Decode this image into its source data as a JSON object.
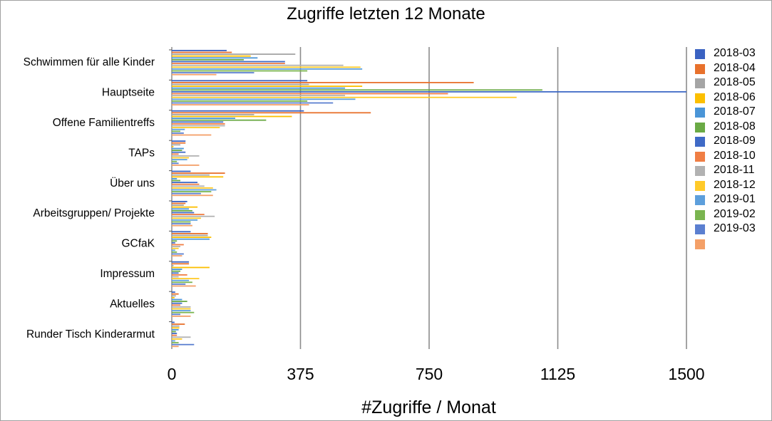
{
  "chart_data": {
    "type": "bar",
    "orientation": "horizontal",
    "title": "Zugriffe letzten 12 Monate",
    "xlabel": "#Zugriffe / Monat",
    "ylabel": "",
    "xlim": [
      0,
      1500
    ],
    "xticks": [
      "0",
      "375",
      "750",
      "1125",
      "1500"
    ],
    "grid": true,
    "legend_position": "right",
    "categories": [
      "Schwimmen für alle Kinder",
      "Hauptseite",
      "Offene Familientreffs",
      "TAPs",
      "Über uns",
      "Arbeitsgruppen/ Projekte",
      "GCfaK",
      "Impressum",
      "Aktuelles",
      "Runder Tisch Kinderarmut"
    ],
    "series": [
      {
        "name": "2018-03",
        "color": "#3a62c2",
        "values": [
          160,
          395,
          385,
          40,
          55,
          45,
          55,
          50,
          10,
          8
        ]
      },
      {
        "name": "2018-04",
        "color": "#e8712c",
        "values": [
          175,
          880,
          580,
          40,
          155,
          40,
          105,
          50,
          20,
          38
        ]
      },
      {
        "name": "2018-05",
        "color": "#a5a5a5",
        "values": [
          360,
          400,
          240,
          25,
          110,
          35,
          105,
          5,
          12,
          22
        ]
      },
      {
        "name": "2018-06",
        "color": "#fcbf00",
        "values": [
          230,
          555,
          350,
          5,
          150,
          75,
          115,
          110,
          8,
          22
        ]
      },
      {
        "name": "2018-07",
        "color": "#4a95d7",
        "values": [
          250,
          505,
          185,
          35,
          15,
          50,
          110,
          30,
          30,
          20
        ]
      },
      {
        "name": "2018-08",
        "color": "#6aaa45",
        "values": [
          210,
          1080,
          275,
          30,
          25,
          60,
          15,
          25,
          45,
          12
        ]
      },
      {
        "name": "2018-09",
        "color": "#3f6ac6",
        "values": [
          330,
          1500,
          150,
          40,
          75,
          65,
          10,
          20,
          30,
          15
        ]
      },
      {
        "name": "2018-10",
        "color": "#f07e44",
        "values": [
          330,
          805,
          155,
          20,
          80,
          95,
          35,
          45,
          25,
          15
        ]
      },
      {
        "name": "2018-11",
        "color": "#b2b2b2",
        "values": [
          500,
          505,
          155,
          80,
          95,
          125,
          25,
          20,
          55,
          55
        ]
      },
      {
        "name": "2018-12",
        "color": "#ffca29",
        "values": [
          550,
          1005,
          140,
          50,
          120,
          85,
          20,
          80,
          55,
          30
        ]
      },
      {
        "name": "2019-01",
        "color": "#5d9fdc",
        "values": [
          555,
          535,
          38,
          45,
          130,
          75,
          10,
          50,
          55,
          10
        ]
      },
      {
        "name": "2019-02",
        "color": "#7ab550",
        "values": [
          395,
          395,
          25,
          15,
          115,
          55,
          15,
          60,
          65,
          20
        ]
      },
      {
        "name": "2019-03",
        "color": "#5b7fd0",
        "values": [
          240,
          470,
          35,
          20,
          85,
          55,
          35,
          40,
          25,
          65
        ]
      },
      {
        "name": "",
        "color": "#f4a068",
        "values": [
          130,
          400,
          115,
          80,
          120,
          60,
          30,
          70,
          55,
          20
        ]
      }
    ]
  }
}
